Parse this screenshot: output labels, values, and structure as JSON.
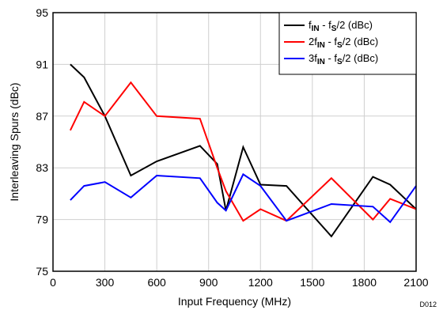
{
  "chart_data": {
    "type": "line",
    "xlabel": "Input Frequency (MHz)",
    "ylabel": "Interleaving Spurs (dBc)",
    "xlim": [
      0,
      2100
    ],
    "ylim": [
      75,
      95
    ],
    "xticks": [
      0,
      300,
      600,
      900,
      1200,
      1500,
      1800,
      2100
    ],
    "yticks": [
      75,
      79,
      83,
      87,
      91,
      95
    ],
    "grid": true,
    "legend_position": "top-right",
    "figure_code": "D012",
    "series": [
      {
        "name": "fIN - fS/2 (dBc)",
        "legend": {
          "pre": "f",
          "sub1": "IN",
          "mid": " - f",
          "sub2": "S",
          "post": "/2 (dBc)"
        },
        "color": "#000000",
        "x": [
          100,
          180,
          300,
          450,
          600,
          850,
          950,
          1000,
          1100,
          1200,
          1350,
          1610,
          1850,
          1950,
          2100
        ],
        "y": [
          91.0,
          90.0,
          87.0,
          82.4,
          83.5,
          84.7,
          83.3,
          79.7,
          84.6,
          81.7,
          81.6,
          77.7,
          82.3,
          81.7,
          79.8
        ]
      },
      {
        "name": "2fIN - fS/2 (dBc)",
        "legend": {
          "pre": "2f",
          "sub1": "IN",
          "mid": " - f",
          "sub2": "S",
          "post": "/2 (dBc)"
        },
        "color": "#ff0000",
        "x": [
          100,
          180,
          300,
          450,
          600,
          850,
          950,
          1000,
          1100,
          1200,
          1350,
          1610,
          1850,
          1950,
          2100
        ],
        "y": [
          85.9,
          88.1,
          87.0,
          89.6,
          87.0,
          86.8,
          83.0,
          81.2,
          78.9,
          79.8,
          78.9,
          82.2,
          79.0,
          80.6,
          79.8
        ]
      },
      {
        "name": "3fIN - fS/2 (dBc)",
        "legend": {
          "pre": "3f",
          "sub1": "IN",
          "mid": " - f",
          "sub2": "S",
          "post": "/2 (dBc)"
        },
        "color": "#0000ff",
        "x": [
          100,
          180,
          300,
          450,
          600,
          850,
          950,
          1000,
          1100,
          1200,
          1350,
          1610,
          1850,
          1950,
          2100
        ],
        "y": [
          80.5,
          81.6,
          81.9,
          80.7,
          82.4,
          82.2,
          80.3,
          79.7,
          82.5,
          81.6,
          78.9,
          80.2,
          80.0,
          78.8,
          81.6
        ]
      }
    ]
  }
}
